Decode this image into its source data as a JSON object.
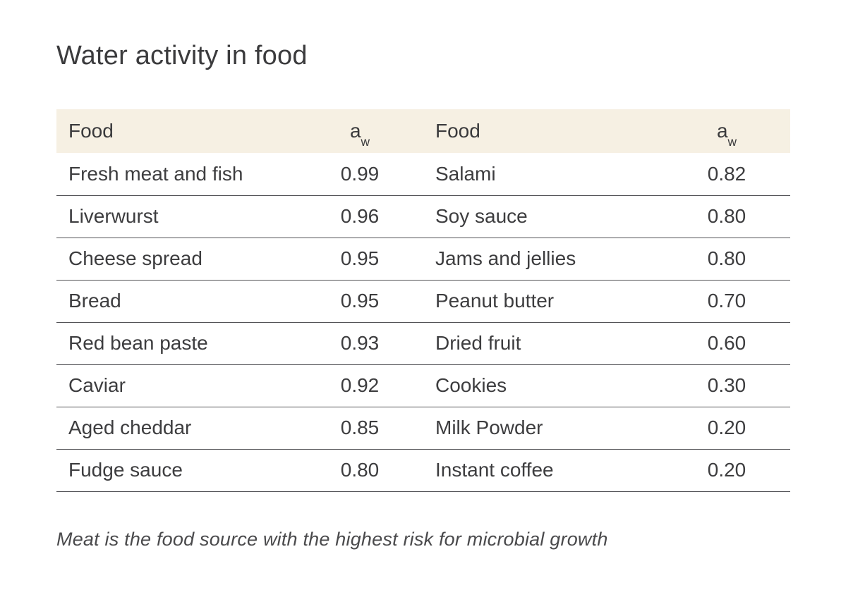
{
  "page": {
    "title": "Water activity in food",
    "caption": "Meat is the food source with the highest risk for microbial growth"
  },
  "table": {
    "headers": {
      "food_left": "Food",
      "aw_left_base": "a",
      "aw_left_sub": "w",
      "food_right": "Food",
      "aw_right_base": "a",
      "aw_right_sub": "w"
    },
    "rows": [
      {
        "left_food": "Fresh meat and fish",
        "left_aw": "0.99",
        "right_food": "Salami",
        "right_aw": "0.82"
      },
      {
        "left_food": "Liverwurst",
        "left_aw": "0.96",
        "right_food": "Soy sauce",
        "right_aw": "0.80"
      },
      {
        "left_food": "Cheese spread",
        "left_aw": "0.95",
        "right_food": "Jams and jellies",
        "right_aw": "0.80"
      },
      {
        "left_food": "Bread",
        "left_aw": "0.95",
        "right_food": "Peanut butter",
        "right_aw": "0.70"
      },
      {
        "left_food": "Red bean paste",
        "left_aw": "0.93",
        "right_food": "Dried fruit",
        "right_aw": "0.60"
      },
      {
        "left_food": "Caviar",
        "left_aw": "0.92",
        "right_food": "Cookies",
        "right_aw": "0.30"
      },
      {
        "left_food": "Aged cheddar",
        "left_aw": "0.85",
        "right_food": "Milk Powder",
        "right_aw": "0.20"
      },
      {
        "left_food": "Fudge sauce",
        "left_aw": "0.80",
        "right_food": "Instant coffee",
        "right_aw": "0.20"
      }
    ]
  },
  "colors": {
    "header_background": "#f6f0e3",
    "body_text": "#3d3d3f",
    "divider_line": "#515155",
    "caption_text": "#4a4a4c"
  },
  "chart_data": {
    "type": "table",
    "title": "Water activity in food",
    "columns": [
      "Food",
      "aw",
      "Food",
      "aw"
    ],
    "rows": [
      [
        "Fresh meat and fish",
        0.99,
        "Salami",
        0.82
      ],
      [
        "Liverwurst",
        0.96,
        "Soy sauce",
        0.8
      ],
      [
        "Cheese spread",
        0.95,
        "Jams and jellies",
        0.8
      ],
      [
        "Bread",
        0.95,
        "Peanut butter",
        0.7
      ],
      [
        "Red bean paste",
        0.93,
        "Dried fruit",
        0.6
      ],
      [
        "Caviar",
        0.92,
        "Cookies",
        0.3
      ],
      [
        "Aged cheddar",
        0.85,
        "Milk Powder",
        0.2
      ],
      [
        "Fudge sauce",
        0.8,
        "Instant coffee",
        0.2
      ]
    ],
    "caption": "Meat is the food source with the highest risk for microbial growth",
    "layout": {
      "grid": "horizontal-dividers-only",
      "header_style": "cream-band",
      "value_precision": 2
    }
  }
}
